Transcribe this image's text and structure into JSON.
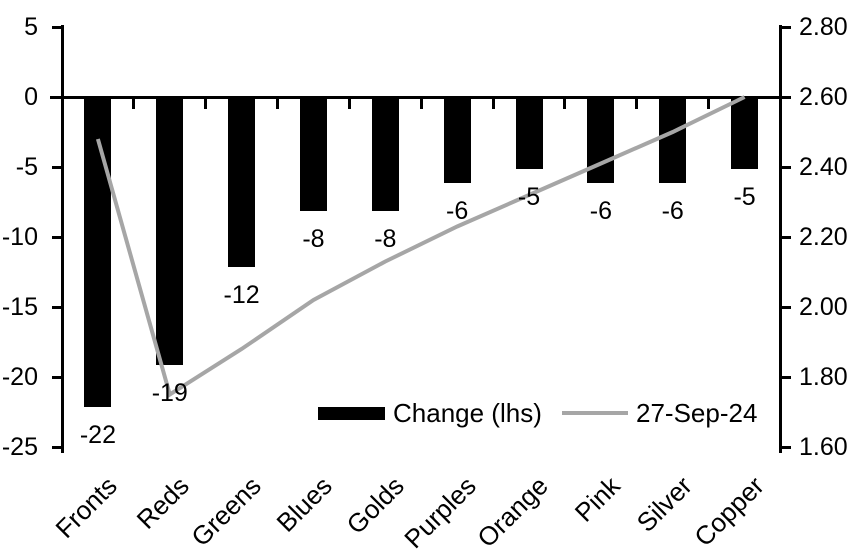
{
  "chart_data": {
    "type": "combo-bar-line",
    "title": "",
    "categories": [
      "Fronts",
      "Reds",
      "Greens",
      "Blues",
      "Golds",
      "Purples",
      "Orange",
      "Pink",
      "Silver",
      "Copper"
    ],
    "series": [
      {
        "name": "Change (lhs)",
        "type": "bar",
        "axis": "left",
        "color": "#000000",
        "values": [
          -22,
          -19,
          -12,
          -8,
          -8,
          -6,
          -5,
          -6,
          -6,
          -5
        ],
        "data_labels": [
          "-22",
          "-19",
          "-12",
          "-8",
          "-8",
          "-6",
          "-5",
          "-6",
          "-6",
          "-5"
        ]
      },
      {
        "name": "27-Sep-24",
        "type": "line",
        "axis": "right",
        "color": "#a6a6a6",
        "values": [
          2.48,
          1.75,
          1.88,
          2.02,
          2.13,
          2.23,
          2.32,
          2.41,
          2.5,
          2.6
        ]
      }
    ],
    "left_axis": {
      "tick_labels": [
        "5",
        "0",
        "-5",
        "-10",
        "-15",
        "-20",
        "-25"
      ],
      "min": -25,
      "max": 5
    },
    "right_axis": {
      "tick_labels": [
        "2.80",
        "2.60",
        "2.40",
        "2.20",
        "2.00",
        "1.80",
        "1.60"
      ],
      "min": 1.6,
      "max": 2.8
    },
    "grid": false,
    "legend_position": "bottom-inside",
    "colors": {
      "bar": "#000000",
      "line": "#a6a6a6",
      "text": "#000000",
      "background": "#ffffff"
    }
  }
}
